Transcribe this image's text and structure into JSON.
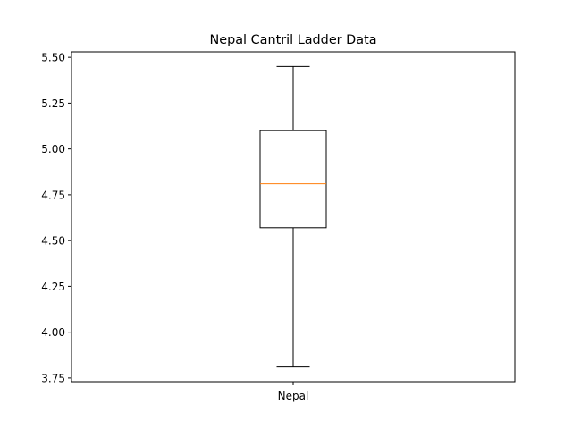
{
  "chart_data": {
    "type": "box",
    "title": "Nepal Cantril Ladder Data",
    "xlabel": "",
    "ylabel": "",
    "categories": [
      "Nepal"
    ],
    "boxes": [
      {
        "name": "Nepal",
        "whisker_low": 3.81,
        "q1": 4.57,
        "median": 4.81,
        "q3": 5.1,
        "whisker_high": 5.45
      }
    ],
    "ylim": [
      3.73,
      5.53
    ],
    "yticks": [
      3.75,
      4.0,
      4.25,
      4.5,
      4.75,
      5.0,
      5.25,
      5.5
    ],
    "ytick_labels": [
      "3.75",
      "4.00",
      "4.25",
      "4.50",
      "4.75",
      "5.00",
      "5.25",
      "5.50"
    ],
    "grid": false,
    "colors": {
      "box": "#000000",
      "median": "#ff7f0e",
      "whisker": "#000000",
      "axes": "#000000"
    }
  }
}
